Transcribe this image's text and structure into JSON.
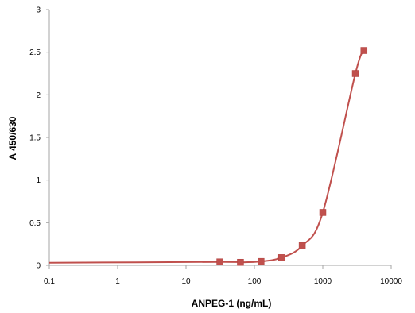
{
  "chart_data": {
    "type": "scatter",
    "title": "",
    "xlabel": "ANPEG-1 (ng/mL)",
    "ylabel": "A 450/630",
    "x_scale": "log",
    "xlim": [
      0.1,
      10000
    ],
    "ylim": [
      0,
      3
    ],
    "x_ticks": [
      "0.1",
      "1",
      "10",
      "100",
      "1000",
      "10000"
    ],
    "y_ticks": [
      "0",
      "0.5",
      "1",
      "1.5",
      "2",
      "2.5",
      "3"
    ],
    "grid": false,
    "legend": "none",
    "colors": {
      "series": "#c0504d",
      "axis": "#a6a6a6"
    },
    "series": [
      {
        "x": [
          31.25,
          62.5,
          125,
          250,
          500,
          1000,
          3000,
          4000
        ],
        "y": [
          0.04,
          0.035,
          0.045,
          0.09,
          0.23,
          0.62,
          2.25,
          2.52
        ],
        "fit_curve": true
      }
    ]
  }
}
